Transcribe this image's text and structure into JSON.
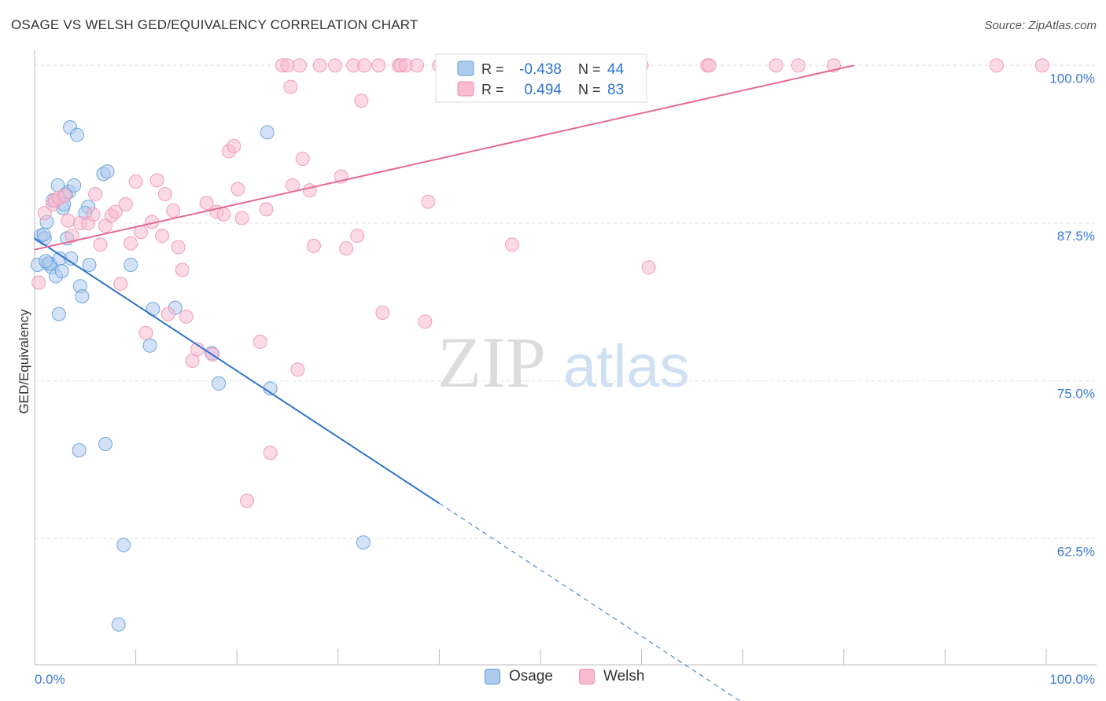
{
  "title": "OSAGE VS WELSH GED/EQUIVALENCY CORRELATION CHART",
  "source": "Source: ZipAtlas.com",
  "watermark": {
    "zip": "ZIP",
    "atlas": "atlas"
  },
  "chart_data": {
    "type": "scatter",
    "ylabel": "GED/Equivalency",
    "xlabel": "",
    "xlim": [
      0,
      100
    ],
    "ylim": [
      52.5,
      101.2
    ],
    "x_tick_labels": {
      "left": "0.0%",
      "right": "100.0%"
    },
    "y_ticks": [
      {
        "value": 100.0,
        "label": "100.0%"
      },
      {
        "value": 87.5,
        "label": "87.5%"
      },
      {
        "value": 75.0,
        "label": "75.0%"
      },
      {
        "value": 62.5,
        "label": "62.5%"
      }
    ],
    "grid": "horizontal dashed",
    "legend_position": "top-center",
    "series": [
      {
        "name": "Osage",
        "color": "#5b9bd5",
        "fill": "#aecbee",
        "line_color": "#2f73cc",
        "R": "-0.438",
        "N": "44",
        "trend": {
          "x0": 0,
          "y0": 86.3,
          "x1": 40,
          "y1": 65.3,
          "dashed_to_x": 70,
          "dashed_to_y": 49.5
        },
        "points": [
          [
            0.3,
            84.2
          ],
          [
            0.6,
            86.5
          ],
          [
            1.0,
            86.3
          ],
          [
            1.3,
            84.3
          ],
          [
            1.7,
            84.0
          ],
          [
            1.2,
            87.6
          ],
          [
            1.5,
            84.3
          ],
          [
            1.8,
            89.3
          ],
          [
            2.1,
            83.3
          ],
          [
            2.3,
            90.5
          ],
          [
            2.5,
            84.7
          ],
          [
            2.4,
            80.3
          ],
          [
            2.7,
            83.7
          ],
          [
            2.8,
            88.7
          ],
          [
            3.1,
            89.8
          ],
          [
            3.2,
            86.3
          ],
          [
            3.4,
            90.0
          ],
          [
            3.5,
            95.1
          ],
          [
            3.6,
            84.7
          ],
          [
            3.9,
            90.5
          ],
          [
            4.2,
            94.5
          ],
          [
            4.5,
            82.5
          ],
          [
            4.7,
            81.7
          ],
          [
            5.3,
            88.8
          ],
          [
            5.4,
            84.2
          ],
          [
            5.0,
            88.3
          ],
          [
            6.8,
            91.4
          ],
          [
            7.2,
            91.6
          ],
          [
            9.5,
            84.2
          ],
          [
            11.7,
            80.7
          ],
          [
            11.4,
            77.8
          ],
          [
            13.9,
            80.8
          ],
          [
            17.5,
            77.2
          ],
          [
            18.2,
            74.8
          ],
          [
            23.0,
            94.7
          ],
          [
            23.3,
            74.4
          ],
          [
            4.4,
            69.5
          ],
          [
            7.0,
            70.0
          ],
          [
            8.8,
            62.0
          ],
          [
            8.3,
            55.7
          ],
          [
            32.5,
            62.2
          ],
          [
            0.9,
            86.6
          ],
          [
            2.9,
            89.0
          ],
          [
            1.1,
            84.5
          ]
        ]
      },
      {
        "name": "Welsh",
        "color": "#f08fb0",
        "fill": "#f7bcd0",
        "line_color": "#e46a93",
        "R": "0.494",
        "N": "83",
        "trend": {
          "x0": 0,
          "y0": 85.4,
          "x1": 81,
          "y1": 100.0
        },
        "points": [
          [
            0.4,
            82.8
          ],
          [
            1.0,
            88.3
          ],
          [
            1.8,
            89.0
          ],
          [
            2.0,
            89.3
          ],
          [
            2.4,
            89.5
          ],
          [
            3.0,
            89.7
          ],
          [
            3.3,
            87.7
          ],
          [
            3.7,
            86.5
          ],
          [
            4.5,
            87.5
          ],
          [
            5.3,
            87.5
          ],
          [
            5.8,
            88.2
          ],
          [
            6.0,
            89.8
          ],
          [
            6.5,
            85.8
          ],
          [
            7.0,
            87.3
          ],
          [
            7.6,
            88.1
          ],
          [
            8.0,
            88.4
          ],
          [
            8.5,
            82.7
          ],
          [
            9.0,
            89.0
          ],
          [
            9.5,
            85.9
          ],
          [
            10.0,
            90.8
          ],
          [
            10.5,
            86.8
          ],
          [
            11.0,
            78.8
          ],
          [
            11.6,
            87.6
          ],
          [
            12.1,
            90.9
          ],
          [
            12.6,
            86.5
          ],
          [
            12.9,
            89.8
          ],
          [
            13.2,
            80.3
          ],
          [
            13.7,
            88.5
          ],
          [
            14.2,
            85.6
          ],
          [
            14.6,
            83.8
          ],
          [
            15.0,
            80.1
          ],
          [
            15.6,
            76.6
          ],
          [
            16.1,
            77.5
          ],
          [
            17.0,
            89.1
          ],
          [
            17.6,
            77.1
          ],
          [
            18.0,
            88.4
          ],
          [
            18.7,
            88.2
          ],
          [
            19.2,
            93.2
          ],
          [
            19.7,
            93.6
          ],
          [
            20.1,
            90.2
          ],
          [
            20.5,
            87.9
          ],
          [
            21.0,
            65.5
          ],
          [
            22.3,
            78.1
          ],
          [
            22.9,
            88.6
          ],
          [
            23.3,
            69.3
          ],
          [
            24.5,
            100.0
          ],
          [
            25.0,
            100.0
          ],
          [
            25.3,
            98.3
          ],
          [
            25.5,
            90.5
          ],
          [
            26.0,
            75.9
          ],
          [
            26.2,
            100.0
          ],
          [
            26.5,
            92.6
          ],
          [
            27.2,
            90.1
          ],
          [
            27.6,
            85.7
          ],
          [
            28.2,
            100.0
          ],
          [
            29.7,
            100.0
          ],
          [
            30.3,
            91.2
          ],
          [
            30.8,
            85.5
          ],
          [
            31.5,
            100.0
          ],
          [
            31.9,
            86.5
          ],
          [
            32.3,
            97.2
          ],
          [
            32.6,
            100.0
          ],
          [
            34.0,
            100.0
          ],
          [
            34.4,
            80.4
          ],
          [
            36.0,
            100.0
          ],
          [
            36.2,
            100.0
          ],
          [
            36.7,
            100.0
          ],
          [
            37.8,
            100.0
          ],
          [
            38.6,
            79.7
          ],
          [
            38.9,
            89.2
          ],
          [
            40.0,
            100.0
          ],
          [
            40.5,
            100.0
          ],
          [
            42.5,
            100.0
          ],
          [
            47.2,
            85.8
          ],
          [
            60.0,
            100.0
          ],
          [
            60.7,
            84.0
          ],
          [
            66.5,
            100.0
          ],
          [
            66.7,
            100.0
          ],
          [
            73.3,
            100.0
          ],
          [
            75.5,
            100.0
          ],
          [
            79.0,
            100.0
          ],
          [
            95.1,
            100.0
          ],
          [
            99.6,
            100.0
          ]
        ]
      }
    ]
  }
}
